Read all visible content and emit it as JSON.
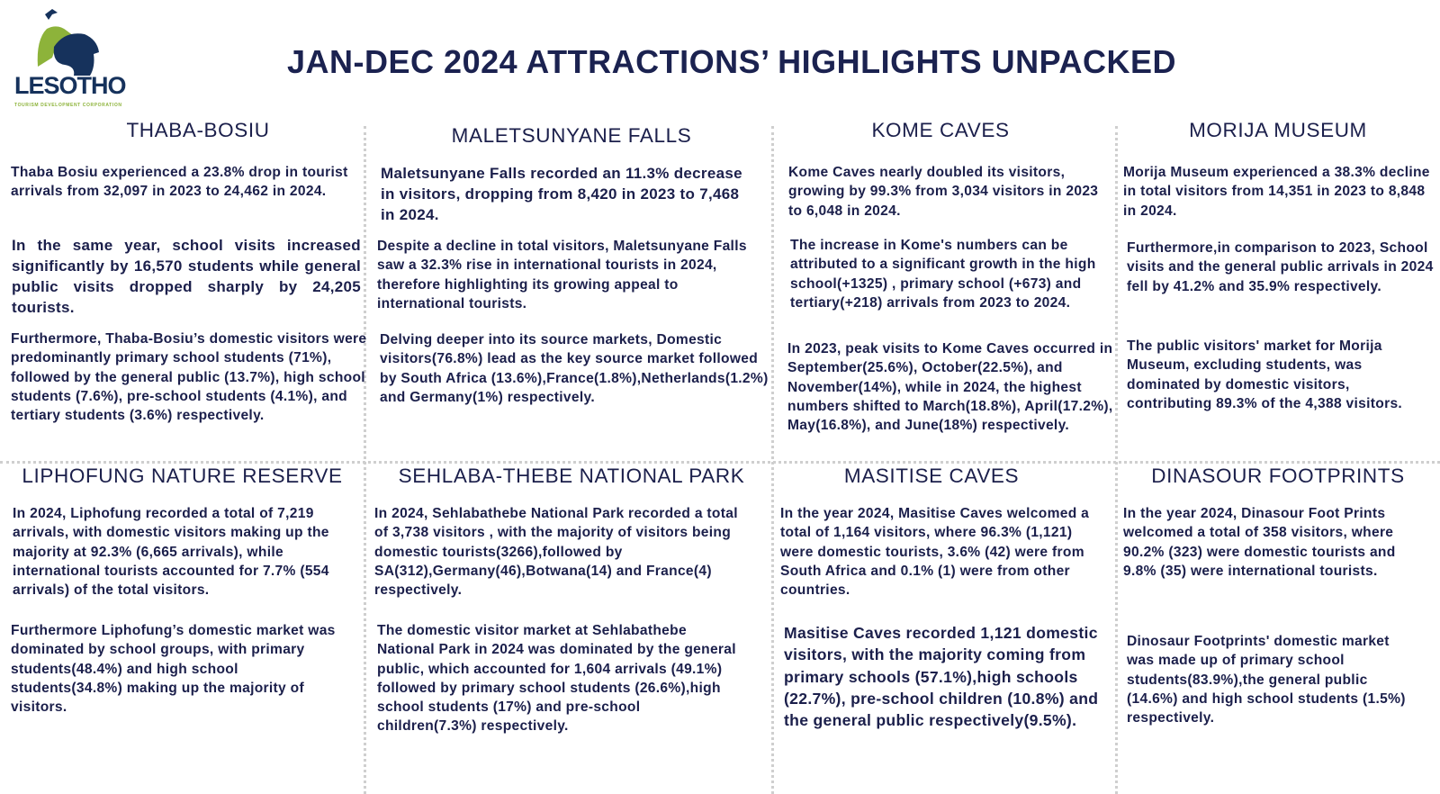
{
  "logo": {
    "name": "LESOTHO",
    "subtitle": "TOURISM DEVELOPMENT CORPORATION"
  },
  "title": "JAN-DEC 2024  ATTRACTIONS’ HIGHLIGHTS UNPACKED",
  "colors": {
    "text": "#1b1f4b",
    "logo_navy": "#16325c",
    "logo_green": "#8db33a",
    "divider": "#cfcfcf"
  },
  "sections": [
    {
      "title": "THABA-BOSIU",
      "paragraphs": [
        "Thaba Bosiu experienced a 23.8% drop in tourist arrivals from 32,097  in 2023 to 24,462  in 2024.",
        "In the same year, school visits increased significantly by 16,570 students while general public visits dropped sharply by 24,205 tourists.",
        "Furthermore, Thaba-Bosiu’s domestic visitors were predominantly primary school students (71%), followed by the general public (13.7%), high school students (7.6%), pre-school students (4.1%), and tertiary students (3.6%) respectively."
      ]
    },
    {
      "title": "MALETSUNYANE FALLS",
      "paragraphs": [
        "Maletsunyane Falls recorded an 11.3% decrease in visitors, dropping from 8,420 in 2023 to 7,468 in 2024.",
        "Despite a decline in total visitors, Maletsunyane Falls saw a 32.3% rise in international tourists in 2024, therefore highlighting its growing appeal to international tourists.",
        "Delving deeper into its source markets, Domestic visitors(76.8%) lead as the key source market followed by South Africa (13.6%),France(1.8%),Netherlands(1.2%) and Germany(1%) respectively."
      ]
    },
    {
      "title": "KOME  CAVES",
      "paragraphs": [
        "Kome Caves nearly doubled its visitors, growing by 99.3% from 3,034  visitors in 2023 to 6,048 in 2024.",
        "The increase in Kome's numbers can be attributed to  a significant growth in the high school(+1325) , primary school (+673)  and  tertiary(+218) arrivals from 2023 to 2024.",
        "In 2023, peak visits to Kome Caves occurred in September(25.6%), October(22.5%), and November(14%), while in 2024, the highest numbers shifted to March(18.8%), April(17.2%), May(16.8%), and June(18%) respectively."
      ]
    },
    {
      "title": "MORIJA  MUSEUM",
      "paragraphs": [
        "Morija Museum experienced a 38.3% decline in total visitors from 14,351 in 2023 to 8,848 in 2024.",
        "Furthermore,in comparison to 2023, School visits and the general public arrivals in 2024 fell by 41.2% and 35.9% respectively.",
        "The public visitors' market for Morija Museum, excluding students, was dominated by domestic visitors, contributing 89.3% of the 4,388 visitors."
      ]
    },
    {
      "title": "LIPHOFUNG  NATURE RESERVE",
      "paragraphs": [
        "In 2024, Liphofung recorded a total of 7,219 arrivals, with domestic visitors making up the majority at 92.3% (6,665 arrivals), while international tourists accounted for 7.7% (554 arrivals) of the total visitors.",
        "Furthermore Liphofung’s domestic market was dominated by school groups, with primary students(48.4%) and high school students(34.8%) making up the majority of visitors."
      ]
    },
    {
      "title": "SEHLABA-THEBE NATIONAL PARK",
      "paragraphs": [
        "In 2024, Sehlabathebe National Park recorded a total of 3,738 visitors , with the majority of visitors  being domestic tourists(3266),followed by SA(312),Germany(46),Botwana(14) and France(4) respectively.",
        "The domestic visitor market at Sehlabathebe National Park in 2024 was dominated by the general public, which accounted for 1,604 arrivals (49.1%) followed by primary school students (26.6%),high school students (17%) and pre-school children(7.3%) respectively."
      ]
    },
    {
      "title": "MASITISE  CAVES",
      "paragraphs": [
        "In  the year 2024, Masitise Caves welcomed a total of 1,164 visitors, where 96.3% (1,121) were domestic tourists, 3.6% (42)  were from South Africa and 0.1% (1) were from other countries.",
        "Masitise Caves recorded 1,121 domestic visitors, with the majority coming from primary schools (57.1%),high schools (22.7%), pre-school children (10.8%) and the general public respectively(9.5%)."
      ]
    },
    {
      "title": "DINASOUR FOOTPRINTS",
      "paragraphs": [
        "In  the year 2024, Dinasour Foot Prints welcomed a total of 358 visitors, where 90.2% (323) were domestic tourists and  9.8% (35) were international tourists.",
        "Dinosaur Footprints' domestic market was  made up of primary school students(83.9%),the general public (14.6%) and high school students (1.5%) respectively."
      ]
    }
  ]
}
